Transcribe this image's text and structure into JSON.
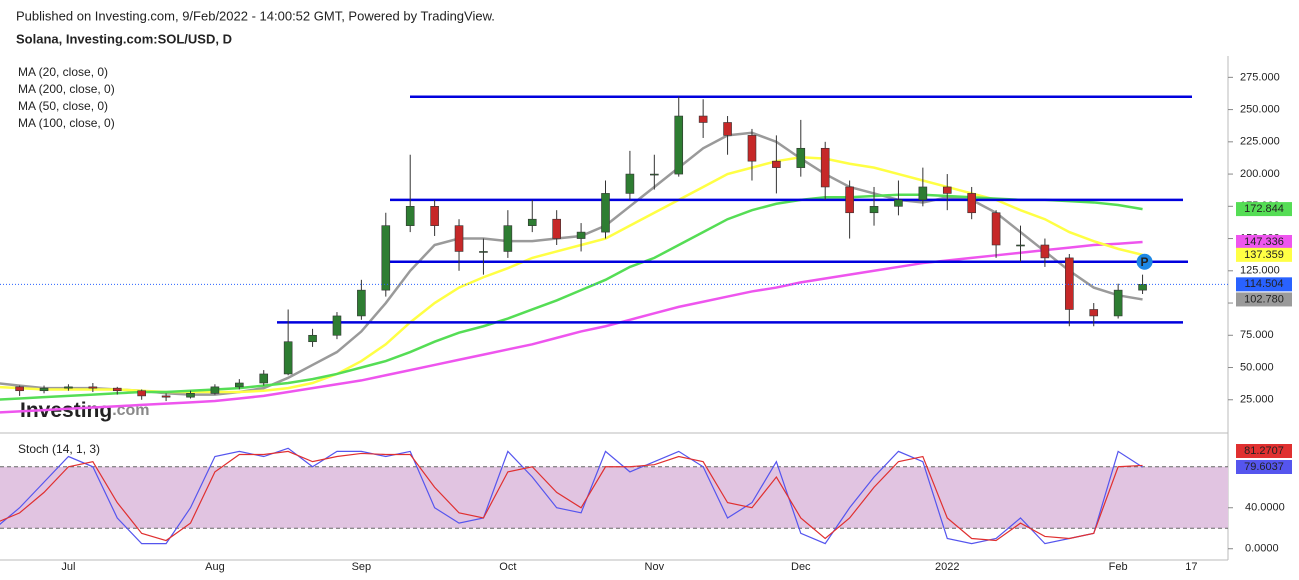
{
  "published": "Published on Investing.com, 9/Feb/2022 - 14:00:52 GMT, Powered by TradingView.",
  "logo": {
    "brand": "Investing",
    "suffix": ".com"
  },
  "marker_label": "P",
  "chart_data": [
    {
      "type": "candlestick",
      "title": "Solana, Investing.com:SOL/USD, D",
      "categories": [
        null,
        null,
        null,
        "Jul",
        null,
        null,
        null,
        null,
        null,
        "Aug",
        null,
        null,
        null,
        null,
        null,
        "Sep",
        null,
        null,
        null,
        null,
        null,
        "Oct",
        null,
        null,
        null,
        null,
        null,
        "Nov",
        null,
        null,
        null,
        null,
        null,
        "Dec",
        null,
        null,
        null,
        null,
        null,
        "2022",
        null,
        null,
        null,
        null,
        null,
        null,
        "Feb",
        null,
        null,
        "17",
        null
      ],
      "open": [
        37,
        35,
        32,
        34,
        35,
        34,
        32,
        28,
        27,
        30,
        35,
        38,
        45,
        70,
        75,
        90,
        110,
        160,
        175,
        160,
        140,
        140,
        160,
        165,
        150,
        155,
        185,
        200,
        200,
        245,
        240,
        230,
        210,
        205,
        220,
        190,
        170,
        175,
        180,
        190,
        185,
        170,
        145,
        145,
        135,
        95,
        90,
        110,
        null,
        null,
        null
      ],
      "high": [
        39,
        36,
        36,
        37,
        38,
        35,
        33,
        30,
        32,
        37,
        41,
        48,
        95,
        80,
        93,
        118,
        170,
        215,
        180,
        165,
        150,
        172,
        180,
        172,
        162,
        195,
        218,
        215,
        260,
        258,
        245,
        235,
        230,
        242,
        225,
        195,
        190,
        195,
        205,
        200,
        190,
        172,
        160,
        150,
        138,
        100,
        115,
        122,
        null,
        null,
        null
      ],
      "low": [
        31,
        28,
        30,
        32,
        31,
        29,
        25,
        24,
        26,
        29,
        33,
        36,
        44,
        66,
        72,
        87,
        105,
        155,
        152,
        125,
        122,
        135,
        155,
        145,
        140,
        150,
        180,
        188,
        198,
        228,
        215,
        195,
        185,
        198,
        180,
        150,
        160,
        168,
        175,
        172,
        165,
        135,
        132,
        128,
        82,
        82,
        88,
        107,
        null,
        null,
        null
      ],
      "close": [
        35,
        32,
        34,
        35,
        34,
        32,
        28,
        27,
        30,
        35,
        38,
        45,
        70,
        75,
        90,
        110,
        160,
        175,
        160,
        140,
        140,
        160,
        165,
        150,
        155,
        185,
        200,
        200,
        245,
        240,
        230,
        210,
        205,
        220,
        190,
        170,
        175,
        180,
        190,
        185,
        170,
        145,
        145,
        135,
        95,
        90,
        110,
        114.504,
        null,
        null,
        null
      ],
      "up_color": "#2e7d32",
      "down_color": "#c62828",
      "last_color": "#2962ff",
      "series": [
        {
          "name": "MA (20, close, 0)",
          "color": "#9a9a9a",
          "last_label": "102.780",
          "values": [
            38,
            36,
            34,
            34,
            34,
            33,
            32,
            30,
            29,
            29,
            31,
            34,
            42,
            52,
            62,
            78,
            100,
            125,
            145,
            150,
            150,
            148,
            148,
            150,
            152,
            160,
            175,
            190,
            205,
            220,
            230,
            232,
            225,
            212,
            200,
            190,
            185,
            180,
            178,
            182,
            180,
            170,
            155,
            140,
            125,
            112,
            106,
            102.78,
            null,
            null,
            null
          ]
        },
        {
          "name": "MA (200, close, 0)",
          "color": "#ee55ee",
          "values": [
            15,
            16,
            17,
            18,
            19,
            20,
            21,
            22,
            23,
            24,
            26,
            28,
            31,
            34,
            37,
            40,
            44,
            48,
            52,
            56,
            60,
            64,
            68,
            73,
            78,
            82,
            87,
            92,
            97,
            101,
            105,
            109,
            112,
            116,
            119,
            122,
            125,
            128,
            131,
            133,
            135,
            137,
            139,
            141,
            143,
            145,
            146,
            147.336,
            null,
            null,
            null
          ]
        },
        {
          "name": "MA (50, close, 0)",
          "color": "#ffff44",
          "values": [
            35,
            34,
            33,
            33,
            33,
            33,
            32,
            31,
            31,
            31,
            31,
            32,
            34,
            38,
            45,
            55,
            68,
            85,
            100,
            112,
            120,
            127,
            135,
            140,
            145,
            150,
            160,
            170,
            180,
            190,
            200,
            205,
            210,
            213,
            212,
            208,
            205,
            200,
            195,
            190,
            185,
            180,
            172,
            165,
            155,
            148,
            142,
            137.359,
            null,
            null,
            null
          ]
        },
        {
          "name": "MA (100, close, 0)",
          "color": "#55dd55",
          "values": [
            25,
            26,
            27,
            28,
            29,
            30,
            31,
            31,
            32,
            33,
            34,
            36,
            38,
            41,
            45,
            50,
            55,
            62,
            70,
            77,
            82,
            88,
            95,
            102,
            110,
            118,
            128,
            135,
            145,
            155,
            165,
            172,
            177,
            180,
            182,
            182,
            183,
            184,
            184,
            183,
            182,
            181,
            180,
            180,
            179,
            178,
            176,
            172.844,
            null,
            null,
            null
          ]
        }
      ],
      "levels": [
        260,
        180,
        132,
        85
      ],
      "level_color": "#0000dd",
      "ylim": [
        0,
        290
      ],
      "yticks": [
        {
          "value": 25,
          "label": "25.000"
        },
        {
          "value": 50,
          "label": "50.000"
        },
        {
          "value": 75,
          "label": "75.000"
        },
        {
          "value": 100,
          "label": "100.000"
        },
        {
          "value": 125,
          "label": "125.000"
        },
        {
          "value": 150,
          "label": "150.000"
        },
        {
          "value": 175,
          "label": "175.000"
        },
        {
          "value": 200,
          "label": "200.000"
        },
        {
          "value": 225,
          "label": "225.000"
        },
        {
          "value": 250,
          "label": "250.000"
        },
        {
          "value": 275,
          "label": "275.000"
        }
      ]
    },
    {
      "type": "line",
      "title": "Stoch (14, 1, 3)",
      "series": [
        {
          "color": "#5555ee",
          "values": [
            20,
            40,
            65,
            90,
            80,
            30,
            5,
            5,
            40,
            90,
            95,
            90,
            98,
            80,
            95,
            95,
            90,
            95,
            40,
            25,
            30,
            95,
            70,
            40,
            35,
            95,
            75,
            85,
            95,
            80,
            30,
            45,
            85,
            15,
            5,
            40,
            70,
            95,
            85,
            10,
            5,
            10,
            30,
            5,
            10,
            15,
            95,
            79.6037,
            null,
            null,
            null
          ]
        },
        {
          "color": "#e03030",
          "values": [
            25,
            35,
            55,
            80,
            85,
            45,
            15,
            8,
            25,
            75,
            92,
            92,
            95,
            85,
            90,
            93,
            92,
            92,
            60,
            35,
            30,
            75,
            80,
            55,
            40,
            80,
            80,
            82,
            90,
            85,
            45,
            40,
            70,
            30,
            10,
            30,
            60,
            85,
            90,
            30,
            10,
            8,
            25,
            12,
            10,
            15,
            80,
            81.2707,
            null,
            null,
            null
          ]
        }
      ],
      "bands": [
        20,
        80
      ],
      "band_color": "#e1c4e1",
      "ylim": [
        -11,
        111
      ],
      "yticks": [
        {
          "value": 0,
          "label": "0.0000"
        },
        {
          "value": 40,
          "label": "40.0000"
        }
      ]
    }
  ]
}
